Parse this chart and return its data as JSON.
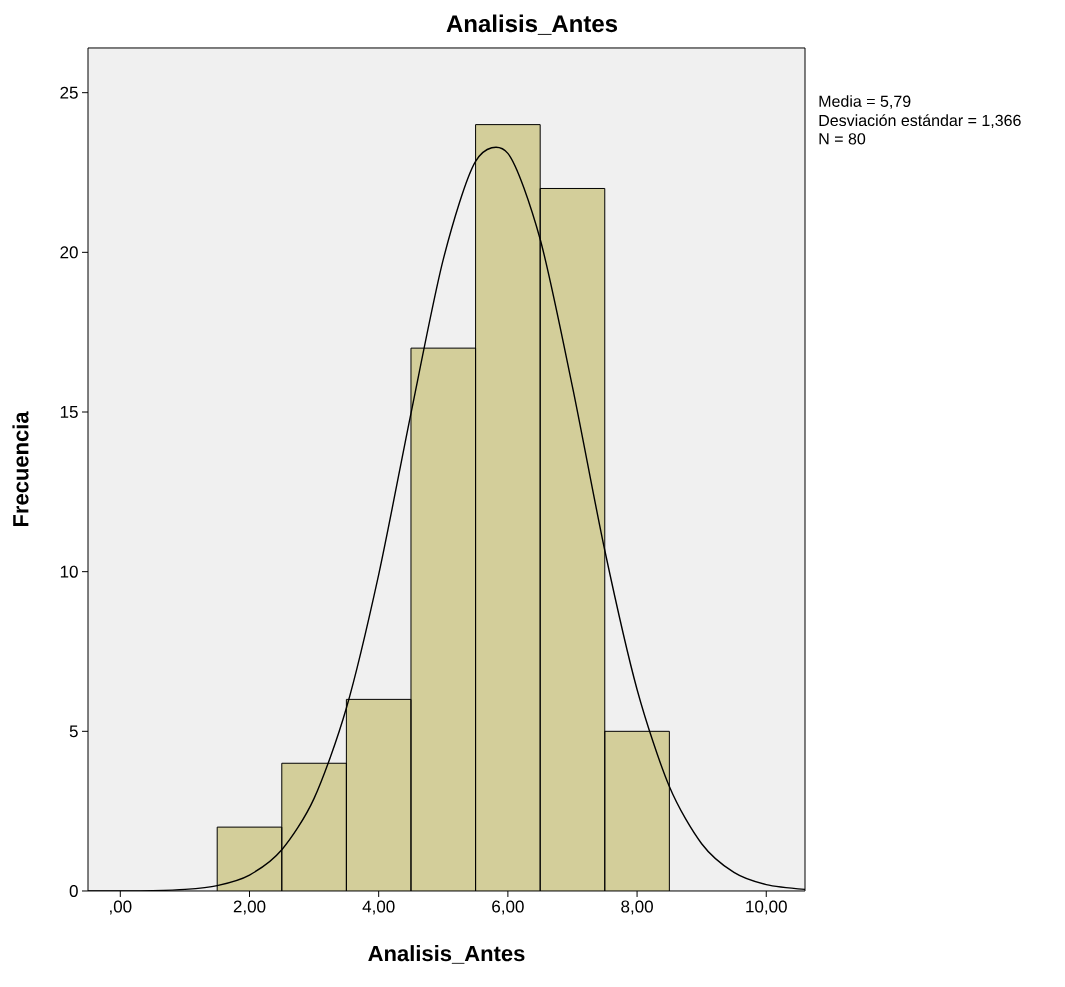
{
  "chart_data": {
    "type": "histogram",
    "title": "Analisis_Antes",
    "xlabel": "Analisis_Antes",
    "ylabel": "Frecuencia",
    "bins": [
      1.5,
      2.5,
      3.5,
      4.5,
      5.5,
      6.5,
      7.5,
      8.5
    ],
    "values": [
      2,
      4,
      6,
      17,
      24,
      22,
      5
    ],
    "color": "#d3ce9a",
    "series": [
      {
        "type": "line",
        "color": "#000000",
        "x": [
          -0.5,
          0,
          0.5,
          1,
          1.5,
          2,
          2.5,
          3,
          3.5,
          4,
          4.5,
          5,
          5.5,
          6,
          6.5,
          7,
          7.5,
          8,
          8.5,
          9,
          9.5,
          10,
          10.6
        ],
        "values": [
          0,
          0,
          0.01,
          0.05,
          0.17,
          0.5,
          1.29,
          2.9,
          5.73,
          9.91,
          14.96,
          19.78,
          22.85,
          23.1,
          20.41,
          15.79,
          10.67,
          6.31,
          3.27,
          1.48,
          0.58,
          0.2,
          0.05
        ]
      }
    ],
    "xlim": [
      -0.5,
      10.6
    ],
    "ylim": [
      0,
      26.4
    ],
    "xticks": [
      {
        "value": 0,
        "label": ",00"
      },
      {
        "value": 2,
        "label": "2,00"
      },
      {
        "value": 4,
        "label": "4,00"
      },
      {
        "value": 6,
        "label": "6,00"
      },
      {
        "value": 8,
        "label": "8,00"
      },
      {
        "value": 10,
        "label": "10,00"
      }
    ],
    "yticks": [
      0,
      5,
      10,
      15,
      20,
      25
    ],
    "annotations": [
      "Media = 5,79",
      "Desviación estándar = 1,366",
      "N = 80"
    ],
    "grid": false,
    "marker": "none",
    "line_style": "solid"
  }
}
